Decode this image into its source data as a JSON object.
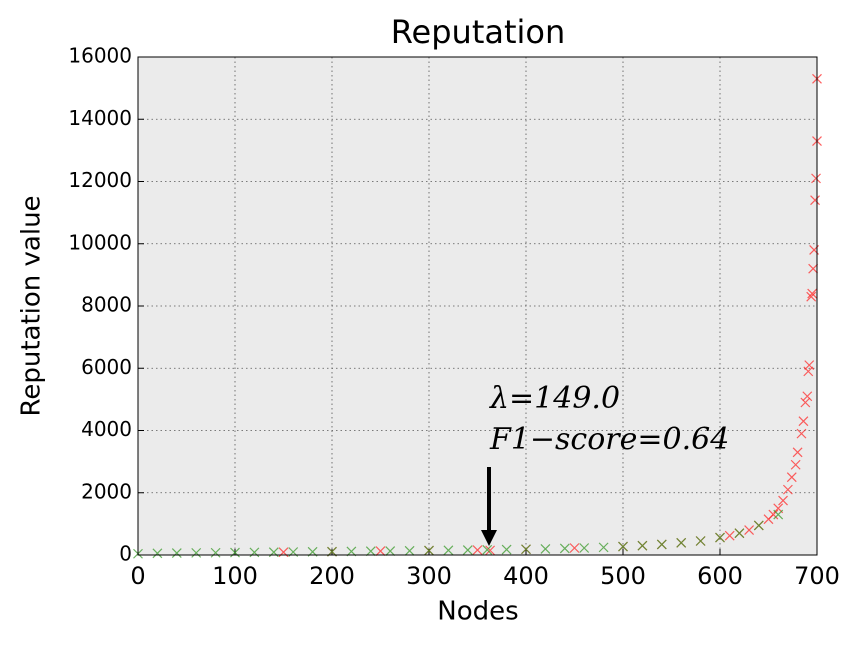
{
  "chart_data": {
    "type": "scatter",
    "title": "Reputation",
    "x_label": "Nodes",
    "y_label": "Reputation value",
    "annotations": [
      "λ=149.0",
      "F1−score=0.64"
    ],
    "xlim": [
      0,
      700
    ],
    "xticks": [
      0,
      100,
      200,
      300,
      400,
      500,
      600,
      700
    ],
    "ylim": [
      0,
      16000
    ],
    "yticks": [
      0,
      2000,
      4000,
      6000,
      8000,
      10000,
      12000,
      14000,
      16000
    ],
    "grid": true,
    "marker": "x",
    "series": [
      {
        "color": "#ff2a2a",
        "x": [
          150,
          200,
          250,
          300,
          350,
          363,
          400,
          450,
          500,
          520,
          540,
          560,
          580,
          600,
          610,
          620,
          630,
          640,
          650,
          655,
          660,
          665,
          670,
          674,
          678,
          680,
          684,
          686,
          688,
          690,
          691,
          692,
          694,
          695,
          696,
          697,
          698,
          699,
          700,
          700
        ],
        "values": [
          90,
          108,
          125,
          142,
          160,
          149,
          185,
          225,
          270,
          300,
          340,
          390,
          450,
          560,
          620,
          700,
          800,
          950,
          1150,
          1300,
          1500,
          1750,
          2100,
          2500,
          2900,
          3300,
          3900,
          4300,
          4900,
          5100,
          5900,
          6100,
          8300,
          8400,
          9200,
          9800,
          11400,
          12100,
          13300,
          15300
        ]
      },
      {
        "color": "#3a9a2a",
        "x": [
          0,
          20,
          40,
          60,
          80,
          100,
          120,
          140,
          160,
          180,
          200,
          220,
          240,
          260,
          280,
          300,
          320,
          340,
          360,
          380,
          400,
          420,
          440,
          460,
          480,
          500,
          520,
          540,
          560,
          580,
          600,
          620,
          640,
          660
        ],
        "values": [
          40,
          55,
          62,
          68,
          72,
          78,
          84,
          90,
          96,
          102,
          108,
          115,
          122,
          128,
          135,
          142,
          150,
          158,
          166,
          175,
          185,
          196,
          210,
          225,
          245,
          270,
          300,
          340,
          390,
          450,
          560,
          700,
          950,
          1300
        ]
      }
    ]
  }
}
